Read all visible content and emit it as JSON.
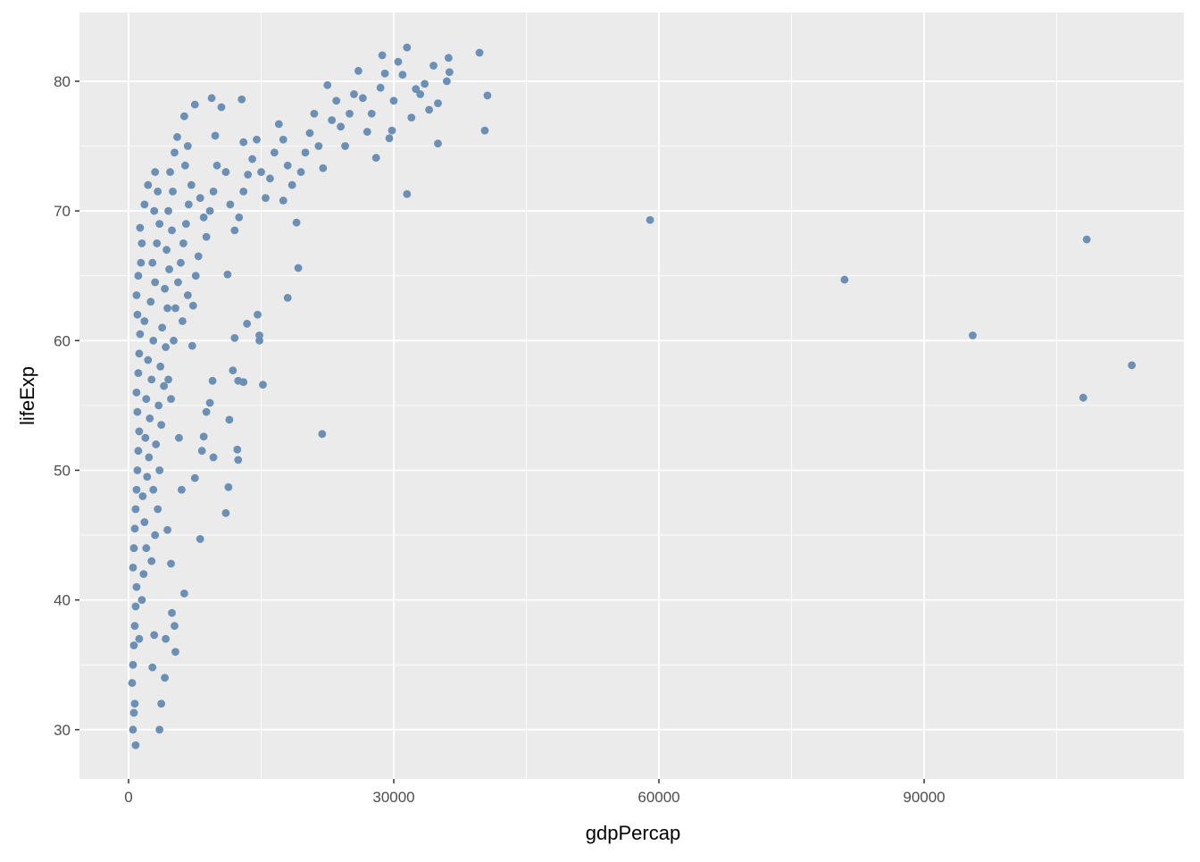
{
  "chart_data": {
    "type": "scatter",
    "xlabel": "gdpPercap",
    "ylabel": "lifeExp",
    "color": "#6b8fb5",
    "grid": true,
    "xlim": [
      -5556,
      119394
    ],
    "ylim": [
      26.2,
      85.3
    ],
    "xticks": [
      0,
      30000,
      60000,
      90000
    ],
    "yticks": [
      30,
      40,
      50,
      60,
      70,
      80
    ],
    "xminor": [
      15000,
      45000,
      75000,
      105000
    ],
    "yminor": [
      35,
      45,
      55,
      65,
      75
    ],
    "x": [
      500,
      600,
      700,
      400,
      500,
      600,
      700,
      800,
      900,
      500,
      600,
      700,
      800,
      900,
      1000,
      1100,
      1200,
      1000,
      900,
      1100,
      1200,
      1300,
      1000,
      900,
      1100,
      1400,
      1500,
      1300,
      1800,
      2200,
      1200,
      1500,
      1700,
      2000,
      1800,
      1600,
      2100,
      2300,
      1900,
      2400,
      2000,
      2600,
      2200,
      2800,
      1800,
      2500,
      3000,
      2700,
      3200,
      3500,
      2900,
      3300,
      3000,
      2600,
      3000,
      3300,
      2800,
      3500,
      3100,
      3700,
      3400,
      4000,
      3600,
      4200,
      3800,
      4400,
      4100,
      4600,
      4300,
      4900,
      4500,
      5000,
      4700,
      5200,
      5500,
      4800,
      4500,
      5100,
      5300,
      5600,
      5900,
      6200,
      6500,
      6800,
      7100,
      6400,
      6700,
      6300,
      7500,
      8100,
      8500,
      8800,
      7900,
      7600,
      7300,
      7200,
      6100,
      6700,
      9200,
      9600,
      10000,
      9800,
      9400,
      10500,
      11000,
      11500,
      12000,
      11200,
      12500,
      13000,
      13500,
      14000,
      12800,
      13000,
      14500,
      15000,
      15500,
      16000,
      16500,
      17000,
      17500,
      18000,
      18500,
      17500,
      19000,
      19200,
      18000,
      19500,
      20000,
      20500,
      21000,
      21500,
      22000,
      22500,
      23000,
      23500,
      24000,
      24500,
      25000,
      25500,
      26000,
      26500,
      27000,
      27500,
      28000,
      28500,
      29000,
      28700,
      29500,
      29800,
      30000,
      30500,
      31000,
      31500,
      32000,
      32500,
      33000,
      33500,
      34000,
      34500,
      35000,
      36000,
      36200,
      36300,
      35000,
      31500,
      39700,
      40600,
      40300,
      59000,
      81000,
      95500,
      108400,
      108000,
      113500,
      21900,
      15200,
      14800,
      14800,
      14600,
      13400,
      12000,
      12400,
      13000,
      11800,
      11400,
      12300,
      12400,
      11300,
      11000,
      9500,
      9200,
      8800,
      9600,
      8500,
      8300,
      8100,
      6300,
      7500,
      6000,
      5700,
      5300,
      5200,
      4900,
      4800,
      4400,
      4200,
      4100,
      3700,
      3500,
      2900,
      2700,
      800
    ],
    "values": [
      30.0,
      31.3,
      32.0,
      33.6,
      35.0,
      36.5,
      38.0,
      39.5,
      41.0,
      42.5,
      44.0,
      45.5,
      47.0,
      48.5,
      50.0,
      51.5,
      53.0,
      54.5,
      56.0,
      57.5,
      59.0,
      60.5,
      62.0,
      63.5,
      65.0,
      66.0,
      67.5,
      68.7,
      70.5,
      72.0,
      37.0,
      40.0,
      42.0,
      44.0,
      46.0,
      48.0,
      49.5,
      51.0,
      52.5,
      54.0,
      55.5,
      57.0,
      58.5,
      60.0,
      61.5,
      63.0,
      64.5,
      66.0,
      67.5,
      69.0,
      70.0,
      71.5,
      73.0,
      43.0,
      45.0,
      47.0,
      48.5,
      50.0,
      52.0,
      53.5,
      55.0,
      56.5,
      58.0,
      59.5,
      61.0,
      62.5,
      64.0,
      65.5,
      67.0,
      68.5,
      70.0,
      71.5,
      73.0,
      74.5,
      75.7,
      55.5,
      57.0,
      60.0,
      62.5,
      64.5,
      66.0,
      67.5,
      69.0,
      70.5,
      72.0,
      73.5,
      75.0,
      77.3,
      78.2,
      71.0,
      69.5,
      68.0,
      66.5,
      65.0,
      62.7,
      59.6,
      61.5,
      63.5,
      70.0,
      71.5,
      73.5,
      75.8,
      78.7,
      78.0,
      73.0,
      70.5,
      68.5,
      65.1,
      69.5,
      71.5,
      72.8,
      74.0,
      78.6,
      75.3,
      75.5,
      73.0,
      71.0,
      72.5,
      74.5,
      76.7,
      75.5,
      73.5,
      72.0,
      70.8,
      69.1,
      65.6,
      63.3,
      73.0,
      74.5,
      76.0,
      77.5,
      75.0,
      73.3,
      79.7,
      77.0,
      78.5,
      76.5,
      75.0,
      77.5,
      79.0,
      80.8,
      78.7,
      76.1,
      77.5,
      74.1,
      79.5,
      80.6,
      82.0,
      75.6,
      76.2,
      78.5,
      81.5,
      80.5,
      82.6,
      77.2,
      79.4,
      79.0,
      79.8,
      77.8,
      81.2,
      78.3,
      80.0,
      81.8,
      80.7,
      75.2,
      71.3,
      82.2,
      78.9,
      76.2,
      69.3,
      64.7,
      60.4,
      67.8,
      55.6,
      58.1,
      52.8,
      56.6,
      60.0,
      60.4,
      62.0,
      61.3,
      60.2,
      56.9,
      56.8,
      57.7,
      53.9,
      51.6,
      50.8,
      48.7,
      46.7,
      56.9,
      55.2,
      54.5,
      51.0,
      52.6,
      51.5,
      44.7,
      40.5,
      49.4,
      48.5,
      52.5,
      36.0,
      38.0,
      39.0,
      42.8,
      45.4,
      37.0,
      34.0,
      32.0,
      30.0,
      37.3,
      34.8,
      28.8
    ]
  }
}
